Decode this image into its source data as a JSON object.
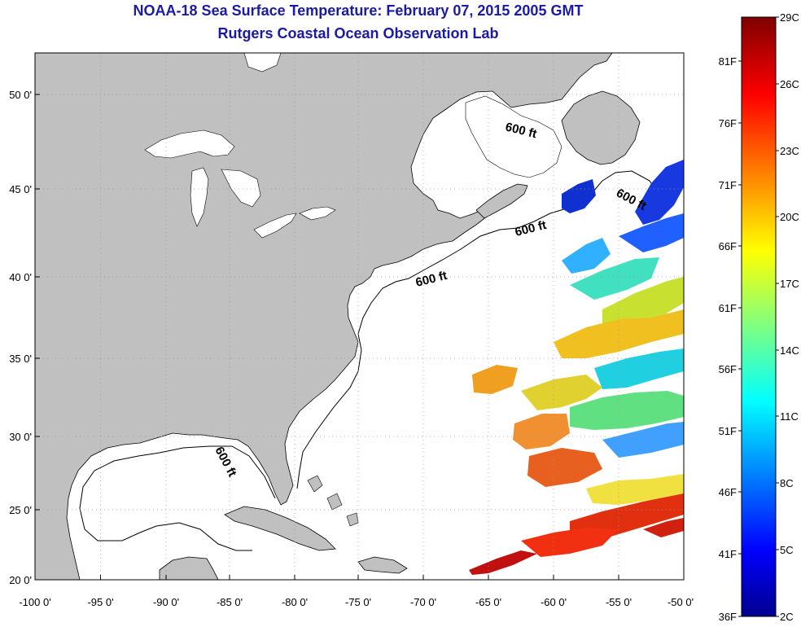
{
  "title": {
    "line1": "NOAA-18 Sea Surface Temperature:  February 07, 2015 2005 GMT",
    "line2": "Rutgers Coastal Ocean Observation Lab"
  },
  "map": {
    "lon_labels": [
      "-100 0'",
      "-95 0'",
      "-90 0'",
      "-85 0'",
      "-80 0'",
      "-75 0'",
      "-70 0'",
      "-65 0'",
      "-60 0'",
      "-55 0'",
      "-50 0'"
    ],
    "lat_labels": [
      "20 0'",
      "25 0'",
      "30 0'",
      "35 0'",
      "40 0'",
      "45 0'",
      "50 0'"
    ],
    "contour_labels": [
      "600 ft",
      "600 ft",
      "600 ft",
      "600 ft",
      "600 ft"
    ],
    "colors": {
      "land": "#c0c0c0",
      "ocean": "#ffffff",
      "grid": "#9a9a9a"
    }
  },
  "colorbar": {
    "celsius_labels": [
      "29C",
      "26C",
      "23C",
      "20C",
      "17C",
      "14C",
      "11C",
      "8C",
      "5C",
      "2C"
    ],
    "fahrenheit_labels": [
      "81F",
      "76F",
      "71F",
      "66F",
      "61F",
      "56F",
      "51F",
      "46F",
      "41F",
      "36F"
    ],
    "range_celsius": [
      2,
      29
    ],
    "colormap": "jet"
  }
}
